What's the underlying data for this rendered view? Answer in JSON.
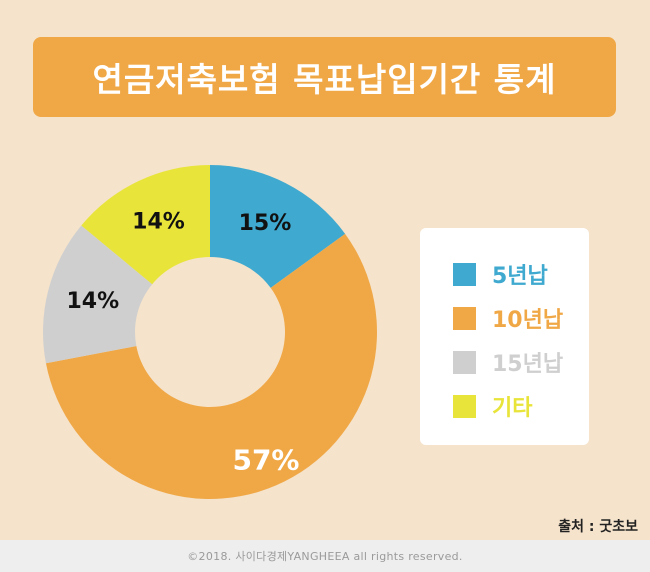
{
  "title": "연금저축보험 목표납입기간 통계",
  "source": "출처 : 굿초보",
  "footer": "©2018. 사이다경제YANGHEEA all rights reserved.",
  "chart_data": {
    "type": "pie",
    "subtype": "donut",
    "categories": [
      "5년납",
      "10년납",
      "15년납",
      "기타"
    ],
    "values": [
      15,
      57,
      14,
      14
    ],
    "labels": [
      "15%",
      "57%",
      "14%",
      "14%"
    ],
    "colors": [
      "#3fa9cf",
      "#f0a847",
      "#cfcfcf",
      "#e8e43a"
    ],
    "label_colors": [
      "#111111",
      "#ffffff",
      "#111111",
      "#111111"
    ],
    "legend_position": "right"
  },
  "legend": [
    {
      "label": "5년납",
      "color": "#3fa9cf"
    },
    {
      "label": "10년납",
      "color": "#f0a847"
    },
    {
      "label": "15년납",
      "color": "#cfcfcf"
    },
    {
      "label": "기타",
      "color": "#e8e43a"
    }
  ]
}
